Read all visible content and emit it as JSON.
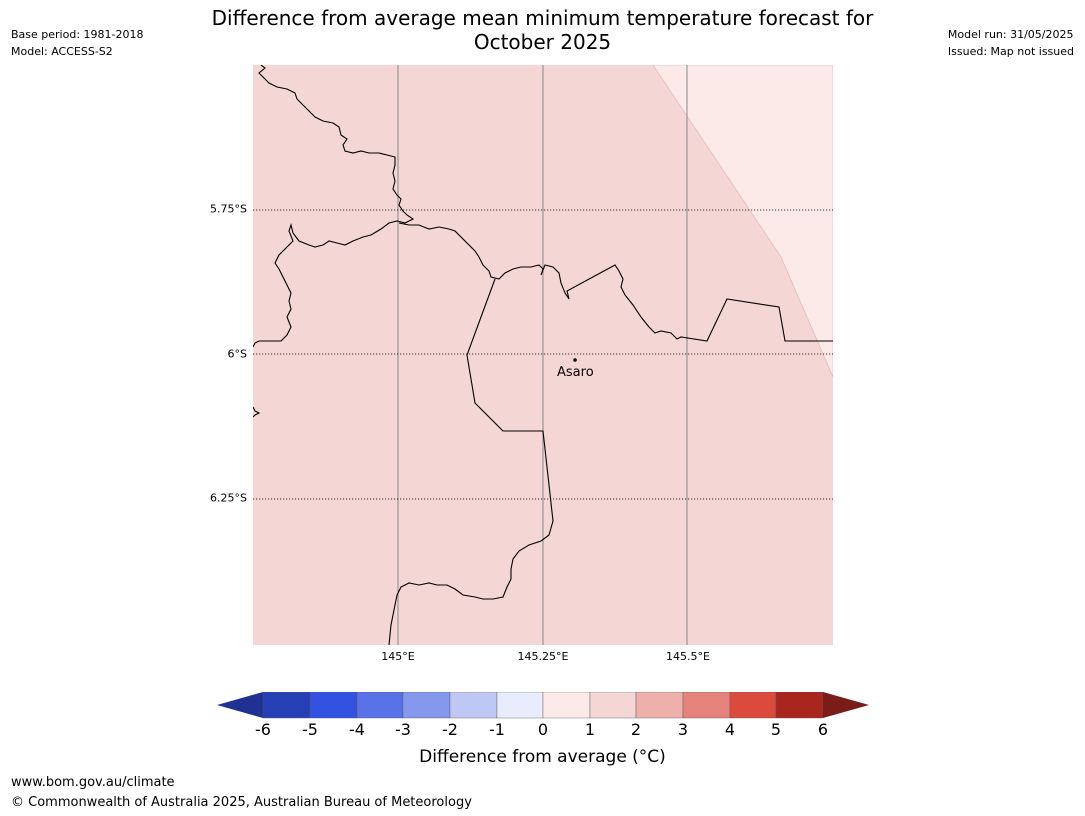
{
  "meta": {
    "base_period": "Base period: 1981-2018",
    "model": "Model: ACCESS-S2",
    "model_run": "Model run: 31/05/2025",
    "issued": "Issued: Map not issued"
  },
  "title_line1": "Difference from average mean minimum temperature forecast for",
  "title_line2": "October 2025",
  "map": {
    "lat_labels": [
      "5.75°S",
      "6°S",
      "6.25°S"
    ],
    "lon_labels": [
      "145°E",
      "145.25°E",
      "145.5°E"
    ],
    "town": "Asaro",
    "fill_main": "#f4d6d4",
    "fill_light": "#fbeae8"
  },
  "colorbar": {
    "ticks": [
      "-6",
      "-5",
      "-4",
      "-3",
      "-2",
      "-1",
      "0",
      "1",
      "2",
      "3",
      "4",
      "5",
      "6"
    ],
    "colors": [
      "#1f3193",
      "#273fb5",
      "#3352e1",
      "#5a72e8",
      "#8598ed",
      "#bfc8f5",
      "#e9ecfc",
      "#fbeae8",
      "#f4d6d4",
      "#edb0aa",
      "#e5827c",
      "#db4a3d",
      "#a9261f",
      "#7a1c18"
    ],
    "label": "Difference from average (°C)"
  },
  "footer": {
    "url": "www.bom.gov.au/climate",
    "copyright": "© Commonwealth of Australia 2025, Australian Bureau of Meteorology"
  }
}
